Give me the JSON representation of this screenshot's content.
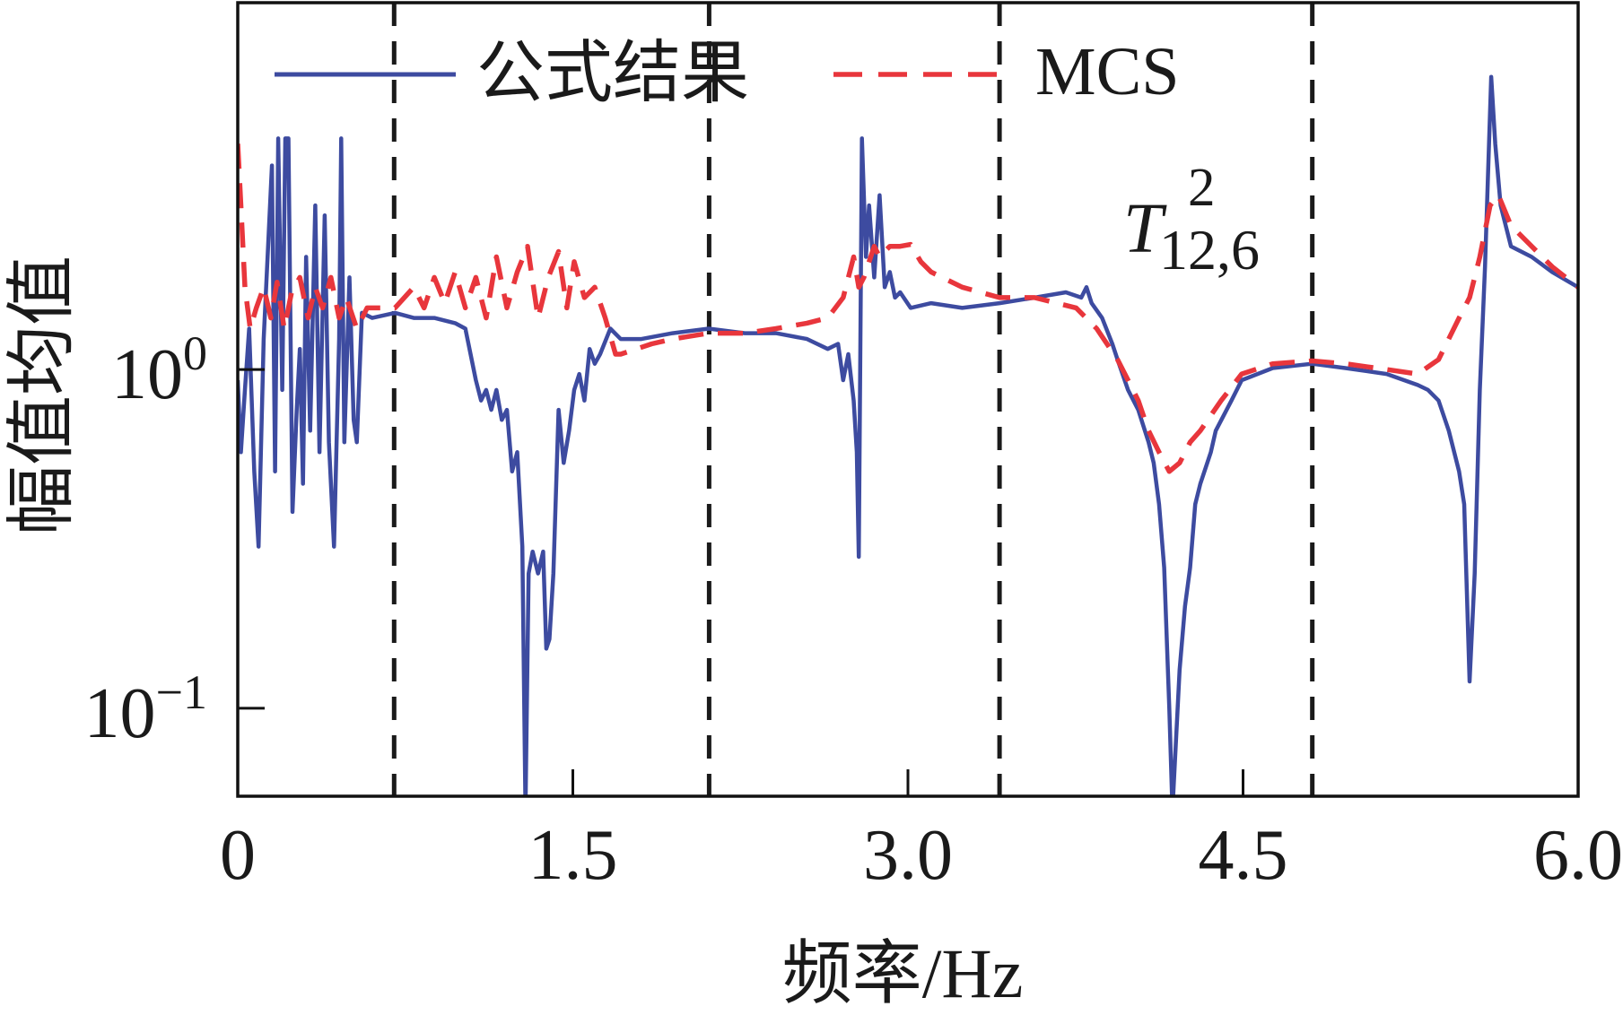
{
  "chart_data": {
    "type": "line",
    "title": "",
    "xlabel": "频率/Hz",
    "ylabel": "幅值均值",
    "xlim": [
      0,
      6.0
    ],
    "ylim": [
      0.055,
      12.1
    ],
    "yscale": "log",
    "grid": false,
    "legend_position": "top",
    "x_ticks": {
      "values": [
        0,
        1.5,
        3.0,
        4.5,
        6.0
      ],
      "labels": [
        "0",
        "1.5",
        "3.0",
        "4.5",
        "6.0"
      ]
    },
    "y_ticks": [
      {
        "value": 1,
        "base": "10",
        "exp": "0"
      },
      {
        "value": 0.1,
        "base": "10",
        "exp": "−1"
      }
    ],
    "reference_lines": [
      0.7,
      2.11,
      3.41,
      4.81
    ],
    "reference_line_color": "#1a1a1a",
    "annotation": {
      "symbol": "T",
      "sup": "2",
      "sub": "12,6"
    },
    "series": [
      {
        "name": "公式结果",
        "color": "#3d4ba0",
        "style": "solid",
        "x": [
          0,
          0.014,
          0.032,
          0.051,
          0.074,
          0.093,
          0.116,
          0.153,
          0.167,
          0.181,
          0.199,
          0.213,
          0.227,
          0.245,
          0.264,
          0.278,
          0.292,
          0.306,
          0.324,
          0.347,
          0.366,
          0.389,
          0.408,
          0.431,
          0.454,
          0.463,
          0.477,
          0.5,
          0.519,
          0.533,
          0.556,
          0.602,
          0.704,
          0.788,
          0.88,
          0.973,
          1.019,
          1.066,
          1.089,
          1.112,
          1.135,
          1.158,
          1.182,
          1.205,
          1.228,
          1.251,
          1.274,
          1.288,
          1.302,
          1.32,
          1.344,
          1.367,
          1.381,
          1.395,
          1.413,
          1.436,
          1.459,
          1.483,
          1.506,
          1.529,
          1.552,
          1.575,
          1.598,
          1.622,
          1.668,
          1.714,
          1.807,
          1.946,
          2.108,
          2.27,
          2.409,
          2.548,
          2.641,
          2.687,
          2.71,
          2.733,
          2.757,
          2.771,
          2.78,
          2.794,
          2.812,
          2.826,
          2.849,
          2.873,
          2.896,
          2.919,
          2.942,
          2.965,
          3.012,
          3.104,
          3.243,
          3.41,
          3.568,
          3.707,
          3.776,
          3.799,
          3.822,
          3.869,
          3.915,
          3.938,
          3.985,
          4.031,
          4.077,
          4.1,
          4.124,
          4.147,
          4.17,
          4.184,
          4.216,
          4.24,
          4.263,
          4.286,
          4.309,
          4.356,
          4.378,
          4.448,
          4.494,
          4.633,
          4.809,
          4.958,
          5.143,
          5.282,
          5.328,
          5.375,
          5.421,
          5.467,
          5.49,
          5.514,
          5.537,
          5.56,
          5.583,
          5.611,
          5.629,
          5.653,
          5.699,
          5.792,
          5.884,
          6.0
        ],
        "y": [
          0.93,
          0.57,
          0.87,
          1.32,
          0.5,
          0.3,
          1.23,
          4.0,
          0.5,
          4.81,
          0.87,
          4.81,
          4.81,
          0.38,
          0.76,
          1.15,
          0.46,
          2.15,
          0.66,
          3.05,
          0.57,
          2.85,
          0.61,
          0.3,
          1.23,
          4.81,
          0.61,
          1.87,
          0.71,
          0.61,
          1.47,
          1.42,
          1.47,
          1.42,
          1.42,
          1.37,
          1.32,
          0.93,
          0.81,
          0.87,
          0.76,
          0.87,
          0.71,
          0.76,
          0.5,
          0.57,
          0.3,
          0.05,
          0.25,
          0.29,
          0.25,
          0.29,
          0.15,
          0.16,
          0.25,
          0.76,
          0.53,
          0.66,
          0.87,
          0.97,
          0.81,
          1.15,
          1.04,
          1.11,
          1.32,
          1.23,
          1.23,
          1.28,
          1.32,
          1.28,
          1.28,
          1.23,
          1.15,
          1.19,
          0.93,
          1.11,
          0.81,
          0.57,
          0.28,
          4.81,
          2.15,
          3.05,
          1.87,
          3.27,
          1.75,
          1.94,
          1.63,
          1.69,
          1.52,
          1.57,
          1.52,
          1.57,
          1.63,
          1.69,
          1.63,
          1.75,
          1.57,
          1.42,
          1.19,
          1.07,
          0.87,
          0.76,
          0.61,
          0.53,
          0.4,
          0.26,
          0.1,
          0.05,
          0.13,
          0.2,
          0.26,
          0.4,
          0.46,
          0.57,
          0.66,
          0.81,
          0.93,
          1.01,
          1.04,
          1.01,
          0.97,
          0.9,
          0.87,
          0.81,
          0.66,
          0.5,
          0.4,
          0.12,
          0.25,
          0.87,
          2.01,
          7.31,
          4.64,
          3.05,
          2.31,
          2.15,
          1.94,
          1.75
        ]
      },
      {
        "name": "MCS",
        "color": "#e8363c",
        "style": "dashed",
        "x": [
          0,
          0.014,
          0.032,
          0.056,
          0.083,
          0.116,
          0.148,
          0.176,
          0.208,
          0.241,
          0.278,
          0.315,
          0.347,
          0.38,
          0.417,
          0.454,
          0.486,
          0.533,
          0.579,
          0.648,
          0.704,
          0.788,
          0.834,
          0.88,
          0.927,
          0.973,
          1.019,
          1.066,
          1.112,
          1.158,
          1.205,
          1.251,
          1.297,
          1.344,
          1.39,
          1.436,
          1.473,
          1.506,
          1.552,
          1.598,
          1.645,
          1.691,
          1.714,
          1.853,
          1.946,
          2.108,
          2.27,
          2.409,
          2.548,
          2.641,
          2.71,
          2.757,
          2.78,
          2.803,
          2.849,
          2.873,
          2.919,
          2.965,
          3.012,
          3.058,
          3.104,
          3.243,
          3.41,
          3.568,
          3.753,
          3.845,
          3.938,
          3.985,
          4.031,
          4.077,
          4.124,
          4.17,
          4.216,
          4.263,
          4.309,
          4.402,
          4.494,
          4.633,
          4.809,
          4.958,
          5.143,
          5.282,
          5.375,
          5.467,
          5.514,
          5.56,
          5.606,
          5.643,
          5.699,
          5.792,
          5.884,
          6.0
        ],
        "y": [
          4.64,
          3.05,
          1.75,
          1.32,
          1.52,
          1.75,
          1.42,
          1.81,
          1.32,
          1.69,
          1.87,
          1.42,
          1.75,
          1.52,
          1.87,
          1.42,
          1.63,
          1.32,
          1.52,
          1.52,
          1.52,
          1.75,
          1.52,
          1.87,
          1.57,
          1.94,
          1.52,
          1.87,
          1.42,
          2.15,
          1.52,
          1.94,
          2.31,
          1.42,
          1.87,
          2.23,
          1.52,
          2.08,
          1.63,
          1.75,
          1.42,
          1.11,
          1.11,
          1.19,
          1.23,
          1.28,
          1.28,
          1.32,
          1.37,
          1.42,
          1.63,
          2.15,
          1.75,
          1.87,
          2.31,
          2.15,
          2.31,
          2.31,
          2.34,
          2.08,
          1.94,
          1.75,
          1.63,
          1.63,
          1.52,
          1.32,
          1.07,
          0.93,
          0.81,
          0.66,
          0.57,
          0.5,
          0.53,
          0.61,
          0.66,
          0.81,
          0.97,
          1.04,
          1.06,
          1.04,
          1.0,
          0.97,
          1.07,
          1.42,
          1.63,
          2.15,
          3.05,
          3.27,
          2.66,
          2.31,
          2.01,
          1.75
        ]
      }
    ]
  }
}
